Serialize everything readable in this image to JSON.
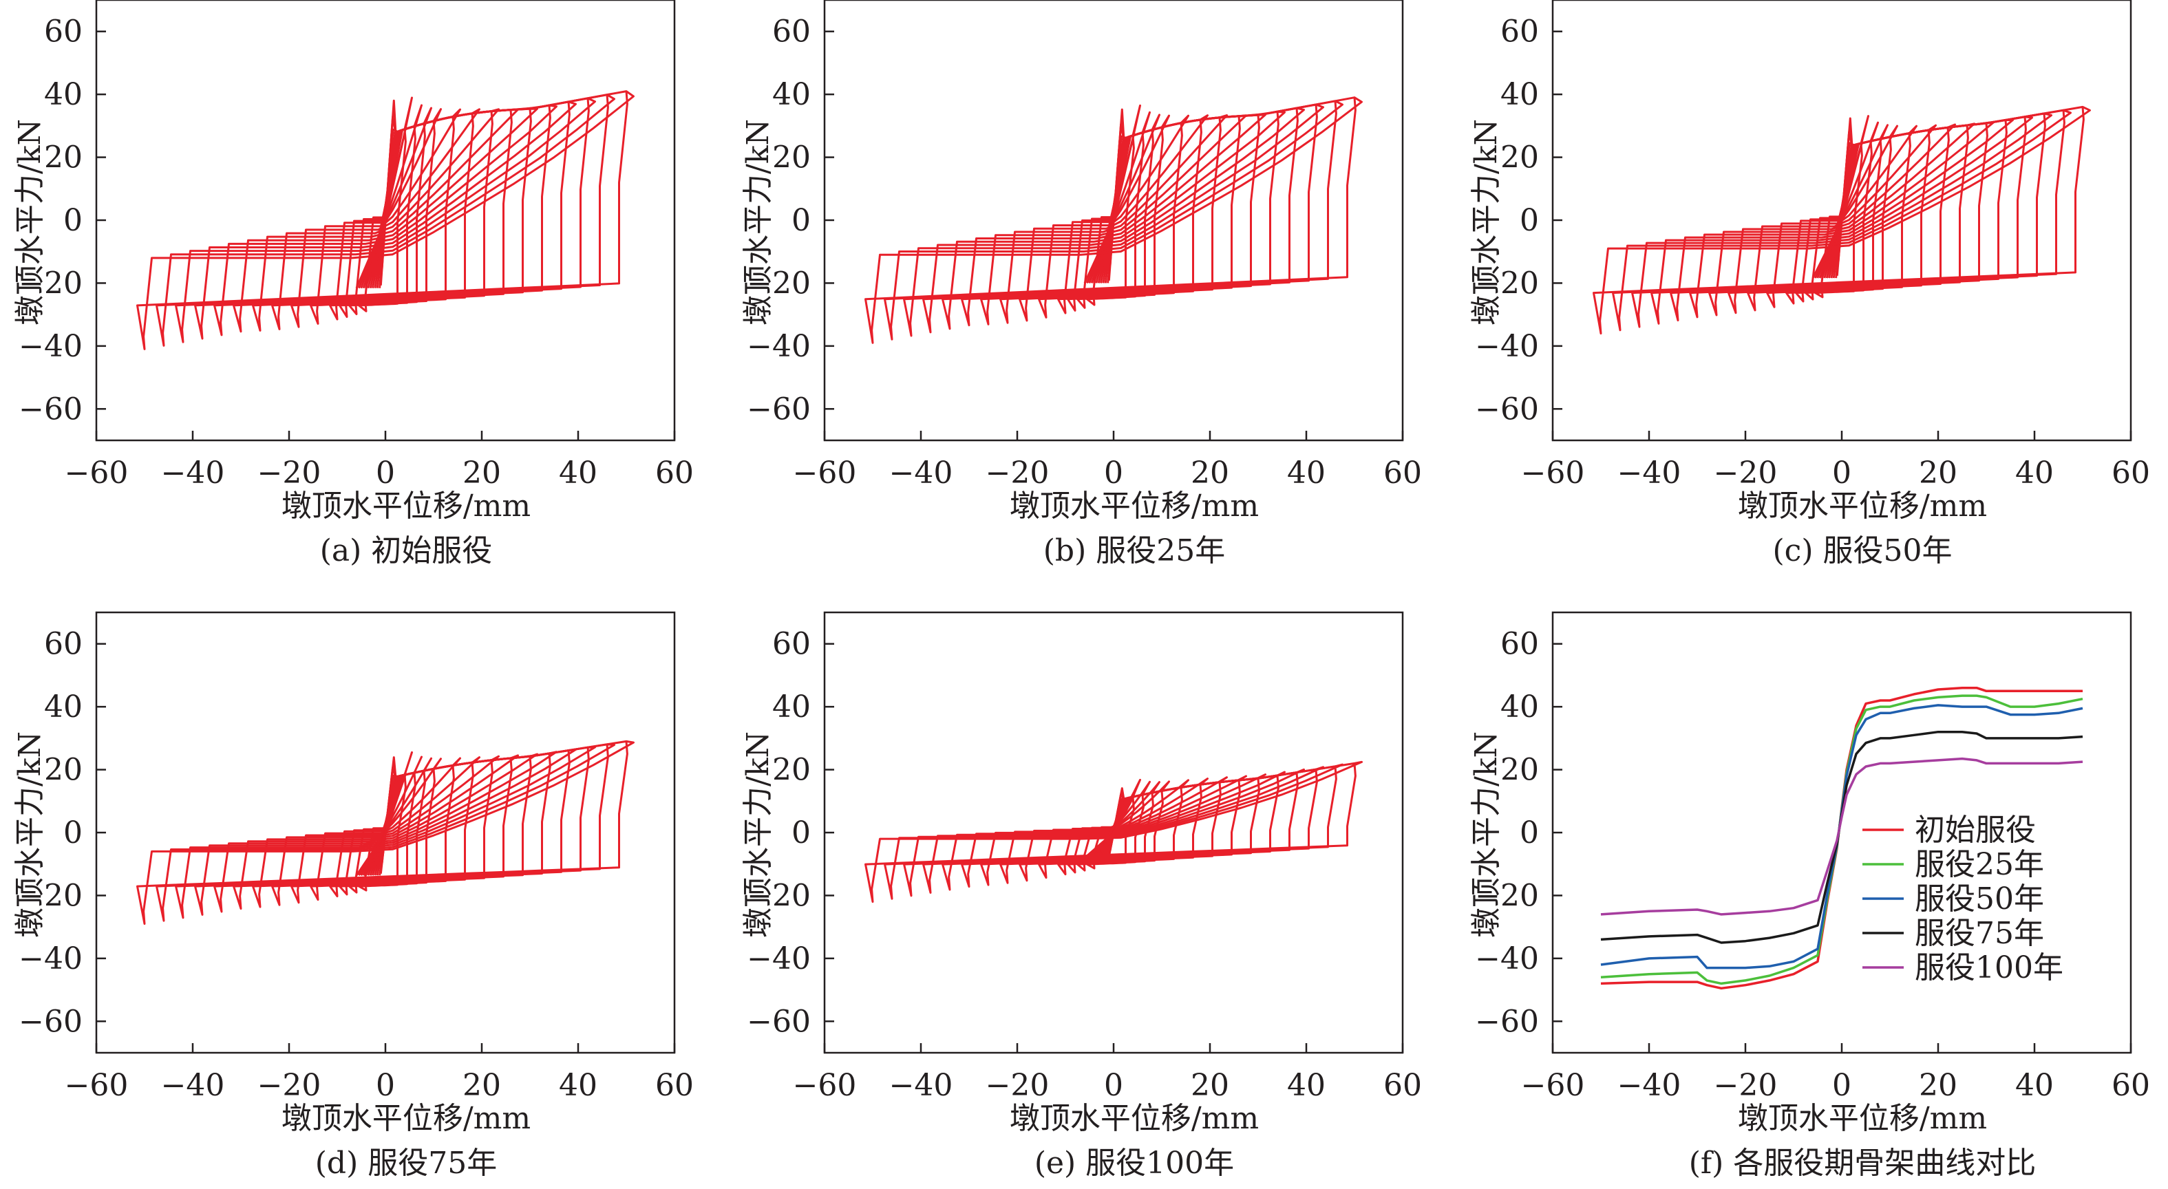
{
  "chart_data": [
    {
      "type": "line",
      "panel": "a",
      "caption": "(a) 初始服役",
      "xlabel": "墩顶水平位移/mm",
      "ylabel": "墩顶水平力/kN",
      "xlim": [
        -60,
        60
      ],
      "ylim": [
        -70,
        70
      ],
      "xticks": [
        "−60",
        "−40",
        "−20",
        "0",
        "20",
        "40",
        "60"
      ],
      "yticks": [
        "60",
        "40",
        "20",
        "0",
        "−20",
        "−40",
        "−60"
      ],
      "hysteresis": {
        "color": "#e8202a",
        "amplitudes_mm": [
          4,
          6,
          8,
          10,
          14,
          18,
          22,
          26,
          30,
          34,
          38,
          42,
          46,
          50
        ],
        "yield_force_kN": 27,
        "unload_force_kN": 14,
        "peak_force_kN": 41,
        "max_force_kN": 43
      }
    },
    {
      "type": "line",
      "panel": "b",
      "caption": "(b) 服役25年",
      "xlabel": "墩顶水平位移/mm",
      "ylabel": "墩顶水平力/kN",
      "xlim": [
        -60,
        60
      ],
      "ylim": [
        -70,
        70
      ],
      "xticks": [
        "−60",
        "−40",
        "−20",
        "0",
        "20",
        "40",
        "60"
      ],
      "yticks": [
        "60",
        "40",
        "20",
        "0",
        "−20",
        "−40",
        "−60"
      ],
      "hysteresis": {
        "color": "#e8202a",
        "amplitudes_mm": [
          4,
          6,
          8,
          10,
          14,
          18,
          22,
          26,
          30,
          34,
          38,
          42,
          46,
          50
        ],
        "yield_force_kN": 25,
        "unload_force_kN": 13,
        "peak_force_kN": 39,
        "max_force_kN": 41
      }
    },
    {
      "type": "line",
      "panel": "c",
      "caption": "(c) 服役50年",
      "xlabel": "墩顶水平位移/mm",
      "ylabel": "墩顶水平力/kN",
      "xlim": [
        -60,
        60
      ],
      "ylim": [
        -70,
        70
      ],
      "xticks": [
        "−60",
        "−40",
        "−20",
        "0",
        "20",
        "40",
        "60"
      ],
      "yticks": [
        "60",
        "40",
        "20",
        "0",
        "−20",
        "−40",
        "−60"
      ],
      "hysteresis": {
        "color": "#e8202a",
        "amplitudes_mm": [
          4,
          6,
          8,
          10,
          14,
          18,
          22,
          26,
          30,
          34,
          38,
          42,
          46,
          50
        ],
        "yield_force_kN": 23,
        "unload_force_kN": 11,
        "peak_force_kN": 36,
        "max_force_kN": 37
      }
    },
    {
      "type": "line",
      "panel": "d",
      "caption": "(d) 服役75年",
      "xlabel": "墩顶水平位移/mm",
      "ylabel": "墩顶水平力/kN",
      "xlim": [
        -60,
        60
      ],
      "ylim": [
        -70,
        70
      ],
      "xticks": [
        "−60",
        "−40",
        "−20",
        "0",
        "20",
        "40",
        "60"
      ],
      "yticks": [
        "60",
        "40",
        "20",
        "0",
        "−20",
        "−40",
        "−60"
      ],
      "hysteresis": {
        "color": "#e8202a",
        "amplitudes_mm": [
          4,
          6,
          8,
          10,
          14,
          18,
          22,
          26,
          30,
          34,
          38,
          42,
          46,
          50
        ],
        "yield_force_kN": 17,
        "unload_force_kN": 8,
        "peak_force_kN": 29,
        "max_force_kN": 30
      }
    },
    {
      "type": "line",
      "panel": "e",
      "caption": "(e) 服役100年",
      "xlabel": "墩顶水平位移/mm",
      "ylabel": "墩顶水平力/kN",
      "xlim": [
        -60,
        60
      ],
      "ylim": [
        -70,
        70
      ],
      "xticks": [
        "−60",
        "−40",
        "−20",
        "0",
        "20",
        "40",
        "60"
      ],
      "yticks": [
        "60",
        "40",
        "20",
        "0",
        "−20",
        "−40",
        "−60"
      ],
      "hysteresis": {
        "color": "#e8202a",
        "amplitudes_mm": [
          4,
          6,
          8,
          10,
          14,
          18,
          22,
          26,
          30,
          34,
          38,
          42,
          46,
          50
        ],
        "yield_force_kN": 10,
        "unload_force_kN": 4,
        "peak_force_kN": 22,
        "max_force_kN": 23
      }
    },
    {
      "type": "line",
      "panel": "f",
      "caption": "(f) 各服役期骨架曲线对比",
      "xlabel": "墩顶水平位移/mm",
      "ylabel": "墩顶水平力/kN",
      "xlim": [
        -60,
        60
      ],
      "ylim": [
        -70,
        70
      ],
      "xticks": [
        "−60",
        "−40",
        "−20",
        "0",
        "20",
        "40",
        "60"
      ],
      "yticks": [
        "60",
        "40",
        "20",
        "0",
        "−20",
        "−40",
        "−60"
      ],
      "legend_position": "lower-right",
      "x": [
        -50,
        -40,
        -30,
        -28,
        -25,
        -20,
        -15,
        -10,
        -5,
        -3,
        -1,
        0,
        1,
        3,
        5,
        8,
        10,
        15,
        20,
        25,
        28,
        30,
        35,
        40,
        45,
        50
      ],
      "series": [
        {
          "name": "初始服役",
          "color": "#e8202a",
          "values": [
            -48,
            -47.5,
            -47.5,
            -48.5,
            -49.5,
            -48.5,
            -47,
            -45,
            -41,
            -22,
            -5,
            8,
            20,
            34,
            41,
            42,
            42,
            44,
            45.5,
            46,
            46,
            45,
            45,
            45,
            45,
            45
          ]
        },
        {
          "name": "服役25年",
          "color": "#4cbf3b",
          "values": [
            -46,
            -45,
            -44.5,
            -47,
            -48,
            -47,
            -45.5,
            -43,
            -39,
            -21,
            -4.5,
            7.5,
            19,
            33,
            39,
            40,
            40,
            42,
            43,
            43.5,
            43.5,
            43,
            40,
            40,
            41,
            42.5
          ]
        },
        {
          "name": "服役50年",
          "color": "#1f5fae",
          "values": [
            -42,
            -40,
            -39.5,
            -43,
            -43,
            -43,
            -42.5,
            -41,
            -37,
            -19.5,
            -4,
            7,
            18,
            31,
            36,
            38,
            38,
            39.5,
            40.5,
            40,
            40,
            40,
            37.5,
            37.5,
            38,
            39.5
          ]
        },
        {
          "name": "服役75年",
          "color": "#1a1a1a",
          "values": [
            -34,
            -33,
            -32.5,
            -33.5,
            -35,
            -34.5,
            -33.5,
            -32,
            -29.5,
            -16,
            -3.5,
            6,
            15,
            25,
            28.5,
            30,
            30,
            31,
            32,
            32,
            31.5,
            30,
            30,
            30,
            30,
            30.5
          ]
        },
        {
          "name": "服役100年",
          "color": "#a63d9e",
          "values": [
            -26,
            -25,
            -24.5,
            -25,
            -26,
            -25.5,
            -25,
            -24,
            -21.5,
            -12,
            -2.5,
            5,
            12,
            18.5,
            21,
            22,
            22,
            22.5,
            23,
            23.5,
            23,
            22,
            22,
            22,
            22,
            22.5
          ]
        }
      ]
    }
  ]
}
